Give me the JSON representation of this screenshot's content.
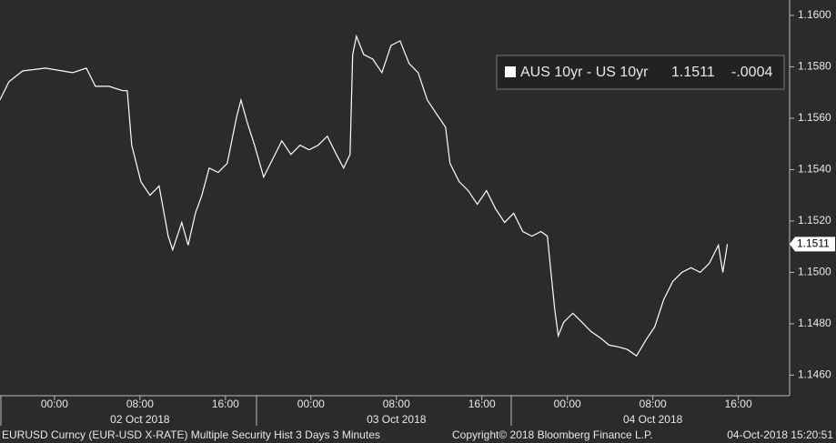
{
  "chart_data": {
    "type": "line",
    "series": [
      {
        "name": "AUS 10yr - US 10yr",
        "color": "#ffffff",
        "x": [
          -5.11,
          -4.26,
          -2.98,
          -0.85,
          1.7,
          2.98,
          3.83,
          5.11,
          6.38,
          6.81,
          7.23,
          8.09,
          8.94,
          9.79,
          10.64,
          11.06,
          11.91,
          12.51,
          13.19,
          13.79,
          14.47,
          15.32,
          16.17,
          17.02,
          17.45,
          18.04,
          18.72,
          19.57,
          20.43,
          21.28,
          22.13,
          22.98,
          23.83,
          24.68,
          25.53,
          26.38,
          27.06,
          27.66,
          27.91,
          28.26,
          28.94,
          29.79,
          30.64,
          31.49,
          32.34,
          33.19,
          34.04,
          34.89,
          35.74,
          36.6,
          37.02,
          37.87,
          38.72,
          39.57,
          40.43,
          41.28,
          42.13,
          42.98,
          43.83,
          44.68,
          45.53,
          46.13,
          46.38,
          46.81,
          47.15,
          47.66,
          48.51,
          49.36,
          50.21,
          51.06,
          51.91,
          52.77,
          53.62,
          54.47,
          55.32,
          56.17,
          57.02,
          57.87,
          58.72,
          59.57,
          60.43,
          61.28,
          62.13,
          62.55,
          62.98
        ],
        "values": [
          1.15671,
          1.15742,
          1.15784,
          1.15795,
          1.15777,
          1.15795,
          1.15724,
          1.15724,
          1.15707,
          1.15707,
          1.15495,
          1.15353,
          1.153,
          1.15336,
          1.15141,
          1.15088,
          1.15194,
          1.15106,
          1.1523,
          1.153,
          1.15406,
          1.15389,
          1.15424,
          1.15601,
          1.15671,
          1.15583,
          1.15495,
          1.15371,
          1.15442,
          1.15512,
          1.15459,
          1.15495,
          1.15477,
          1.15495,
          1.1553,
          1.15459,
          1.15406,
          1.15459,
          1.15848,
          1.15919,
          1.15848,
          1.1583,
          1.15777,
          1.15883,
          1.15901,
          1.15813,
          1.15777,
          1.15671,
          1.15618,
          1.15565,
          1.15424,
          1.15353,
          1.15318,
          1.15265,
          1.15318,
          1.15247,
          1.15194,
          1.1523,
          1.15159,
          1.15141,
          1.15159,
          1.15141,
          1.15035,
          1.14859,
          1.14753,
          1.14806,
          1.14841,
          1.14806,
          1.1477,
          1.14746,
          1.14717,
          1.1471,
          1.147,
          1.14675,
          1.14735,
          1.14788,
          1.14894,
          1.14965,
          1.15,
          1.15018,
          1.15,
          1.15035,
          1.15106,
          1.15,
          1.1511
        ]
      }
    ],
    "last_value": {
      "value": 1.1511,
      "label": "1.1511"
    },
    "change": "-.0004",
    "xlim": [
      -5.1,
      68.8
    ],
    "ylim": [
      1.1452,
      1.1606
    ],
    "xticks": [
      {
        "value": 0,
        "label": "00:00"
      },
      {
        "value": 8,
        "label": "08:00"
      },
      {
        "value": 16,
        "label": "16:00"
      },
      {
        "value": 24,
        "label": "00:00"
      },
      {
        "value": 32,
        "label": "08:00"
      },
      {
        "value": 40,
        "label": "16:00"
      },
      {
        "value": 48,
        "label": "00:00"
      },
      {
        "value": 56,
        "label": "08:00"
      },
      {
        "value": 64,
        "label": "16:00"
      }
    ],
    "date_labels": [
      "02 Oct 2018",
      "03 Oct 2018",
      "04 Oct 2018"
    ],
    "yticks": [
      {
        "value": 1.146,
        "label": "1.1460"
      },
      {
        "value": 1.148,
        "label": "1.1480"
      },
      {
        "value": 1.15,
        "label": "1.1500"
      },
      {
        "value": 1.152,
        "label": "1.1520"
      },
      {
        "value": 1.154,
        "label": "1.1540"
      },
      {
        "value": 1.156,
        "label": "1.1560"
      },
      {
        "value": 1.158,
        "label": "1.1580"
      },
      {
        "value": 1.16,
        "label": "1.1600"
      }
    ],
    "footer": {
      "source": "EURUSD Curncy (EUR-USD X-RATE) Multiple Security Hist   3 Days 3 Minutes",
      "copyright": "Copyright© 2018 Bloomberg Finance L.P.",
      "timestamp": "04-Oct-2018 15:20:51"
    }
  }
}
